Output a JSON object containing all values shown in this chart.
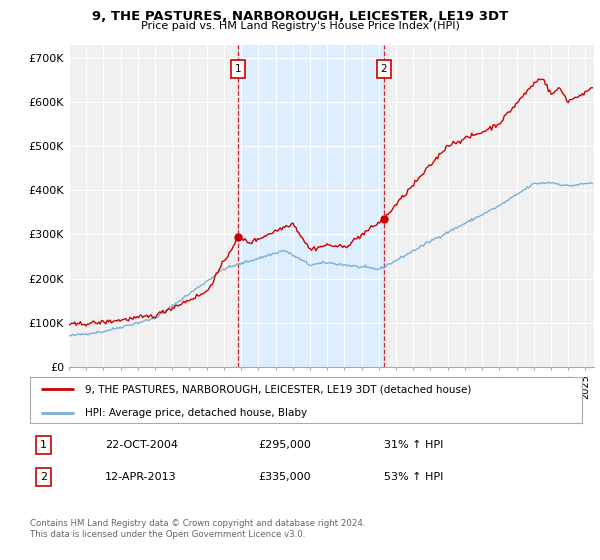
{
  "title": "9, THE PASTURES, NARBOROUGH, LEICESTER, LE19 3DT",
  "subtitle": "Price paid vs. HM Land Registry's House Price Index (HPI)",
  "ylabel_ticks": [
    "£0",
    "£100K",
    "£200K",
    "£300K",
    "£400K",
    "£500K",
    "£600K",
    "£700K"
  ],
  "ytick_vals": [
    0,
    100000,
    200000,
    300000,
    400000,
    500000,
    600000,
    700000
  ],
  "ylim": [
    0,
    730000
  ],
  "xlim_start": 1995.0,
  "xlim_end": 2025.5,
  "hpi_color": "#7bafd4",
  "price_color": "#cc0000",
  "sale1_x": 2004.81,
  "sale1_y": 295000,
  "sale2_x": 2013.28,
  "sale2_y": 335000,
  "legend_label1": "9, THE PASTURES, NARBOROUGH, LEICESTER, LE19 3DT (detached house)",
  "legend_label2": "HPI: Average price, detached house, Blaby",
  "table_row1": [
    "1",
    "22-OCT-2004",
    "£295,000",
    "31% ↑ HPI"
  ],
  "table_row2": [
    "2",
    "12-APR-2013",
    "£335,000",
    "53% ↑ HPI"
  ],
  "footnote": "Contains HM Land Registry data © Crown copyright and database right 2024.\nThis data is licensed under the Open Government Licence v3.0.",
  "bg_color": "#ffffff",
  "plot_bg_color": "#f0f0f0",
  "grid_color": "#ffffff",
  "shade_color": "#ddeeff"
}
